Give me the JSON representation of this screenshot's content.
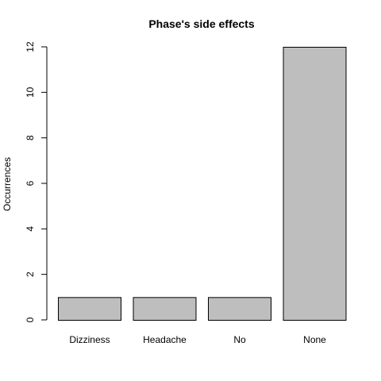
{
  "chart_data": {
    "type": "bar",
    "title": "Phase's side effects",
    "xlabel": "",
    "ylabel": "Occurrences",
    "categories": [
      "Dizziness",
      "Headache",
      "No",
      "None"
    ],
    "values": [
      1,
      1,
      1,
      12
    ],
    "ylim": [
      0,
      12
    ],
    "yticks": [
      0,
      2,
      4,
      6,
      8,
      10,
      12
    ],
    "grid": false,
    "bar_color": "#bebebe",
    "bar_edge_color": "#000000"
  }
}
